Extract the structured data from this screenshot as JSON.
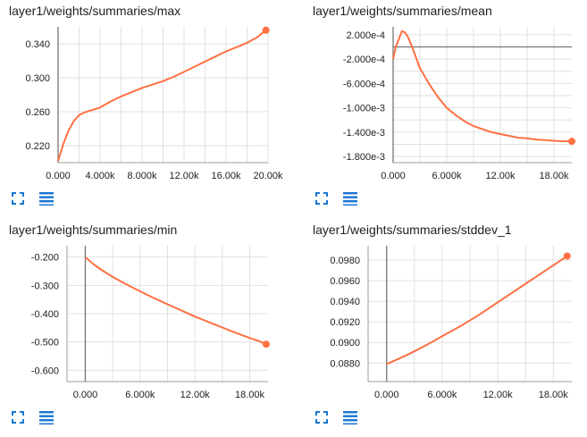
{
  "colors": {
    "series": "#ff7043",
    "grid": "#e0e0e0",
    "axis": "#9e9e9e",
    "zero_line": "#757575",
    "icon": "#1976d2"
  },
  "controls": {
    "expand_icon": "expand-icon",
    "list_icon": "list-icon"
  },
  "chart_data": [
    {
      "type": "line",
      "title": "layer1/weights/summaries/max",
      "xlabel": "",
      "ylabel": "",
      "xlim": [
        0,
        20000
      ],
      "ylim": [
        0.2,
        0.36
      ],
      "xticks": [
        0,
        4000,
        8000,
        12000,
        16000,
        20000
      ],
      "xtick_labels": [
        "0.000",
        "4.000k",
        "8.000k",
        "12.00k",
        "16.00k",
        "20.00k"
      ],
      "yticks": [
        0.22,
        0.26,
        0.3,
        0.34
      ],
      "ytick_labels": [
        "0.220",
        "0.260",
        "0.300",
        "0.340"
      ],
      "series": [
        {
          "x": [
            0,
            500,
            1000,
            1500,
            2000,
            2500,
            3000,
            4000,
            5000,
            6000,
            7000,
            8000,
            9000,
            10000,
            11000,
            12000,
            13000,
            14000,
            15000,
            16000,
            17000,
            18000,
            19000,
            19800
          ],
          "y": [
            0.202,
            0.222,
            0.238,
            0.249,
            0.256,
            0.259,
            0.261,
            0.265,
            0.272,
            0.278,
            0.283,
            0.288,
            0.292,
            0.296,
            0.301,
            0.307,
            0.313,
            0.319,
            0.325,
            0.331,
            0.336,
            0.341,
            0.348,
            0.356
          ]
        }
      ]
    },
    {
      "type": "line",
      "title": "layer1/weights/summaries/mean",
      "xlabel": "",
      "ylabel": "",
      "xlim": [
        0,
        20000
      ],
      "ylim": [
        -0.0019,
        0.00033
      ],
      "xticks": [
        0,
        6000,
        12000,
        18000
      ],
      "xtick_labels": [
        "0.000",
        "6.000k",
        "12.00k",
        "18.00k"
      ],
      "yticks": [
        0.0002,
        0,
        -0.0002,
        -0.0004,
        -0.0006,
        -0.0008,
        -0.001,
        -0.0012,
        -0.0014,
        -0.0016,
        -0.0018
      ],
      "ytick_labels": [
        "2.000e-4",
        "",
        "-2.000e-4",
        "",
        "-6.000e-4",
        "",
        "-1.000e-3",
        "",
        "-1.400e-3",
        "",
        "-1.800e-3"
      ],
      "series": [
        {
          "x": [
            0,
            300,
            700,
            1000,
            1300,
            1600,
            2000,
            2500,
            3000,
            4000,
            5000,
            6000,
            7000,
            8000,
            9000,
            10000,
            11000,
            12000,
            13000,
            14000,
            15000,
            16000,
            17000,
            18000,
            19000,
            20000
          ],
          "y": [
            -0.0002,
            0.0,
            0.00015,
            0.00026,
            0.00024,
            0.00018,
            5e-05,
            -0.00015,
            -0.00035,
            -0.0006,
            -0.00082,
            -0.001,
            -0.00112,
            -0.00122,
            -0.0013,
            -0.00135,
            -0.0014,
            -0.00143,
            -0.00146,
            -0.00149,
            -0.0015,
            -0.00152,
            -0.00153,
            -0.00154,
            -0.00155,
            -0.00155
          ]
        }
      ]
    },
    {
      "type": "line",
      "title": "layer1/weights/summaries/min",
      "xlabel": "",
      "ylabel": "",
      "xlim": [
        -2000,
        20000
      ],
      "ylim": [
        -0.64,
        -0.16
      ],
      "xticks": [
        0,
        6000,
        12000,
        18000
      ],
      "xtick_labels": [
        "0.000",
        "6.000k",
        "12.00k",
        "18.00k"
      ],
      "yticks": [
        -0.2,
        -0.3,
        -0.4,
        -0.5,
        -0.6
      ],
      "ytick_labels": [
        "-0.200",
        "-0.300",
        "-0.400",
        "-0.500",
        "-0.600"
      ],
      "series": [
        {
          "x": [
            0,
            1000,
            2000,
            3000,
            4000,
            5000,
            6000,
            7000,
            8000,
            9000,
            10000,
            11000,
            12000,
            13000,
            14000,
            15000,
            16000,
            17000,
            18000,
            19000,
            19800
          ],
          "y": [
            -0.2,
            -0.228,
            -0.25,
            -0.27,
            -0.288,
            -0.305,
            -0.321,
            -0.337,
            -0.352,
            -0.367,
            -0.381,
            -0.396,
            -0.41,
            -0.423,
            -0.436,
            -0.449,
            -0.462,
            -0.474,
            -0.486,
            -0.497,
            -0.508
          ]
        }
      ]
    },
    {
      "type": "line",
      "title": "layer1/weights/summaries/stddev_1",
      "xlabel": "",
      "ylabel": "",
      "xlim": [
        -2000,
        20000
      ],
      "ylim": [
        0.0862,
        0.0994
      ],
      "xticks": [
        0,
        6000,
        12000,
        18000
      ],
      "xtick_labels": [
        "0.000",
        "6.000k",
        "12.00k",
        "18.00k"
      ],
      "yticks": [
        0.088,
        0.09,
        0.092,
        0.094,
        0.096,
        0.098
      ],
      "ytick_labels": [
        "0.0880",
        "0.0900",
        "0.0920",
        "0.0940",
        "0.0960",
        "0.0980"
      ],
      "series": [
        {
          "x": [
            0,
            2000,
            4000,
            6000,
            8000,
            10000,
            12000,
            14000,
            16000,
            18000,
            19500
          ],
          "y": [
            0.0879,
            0.0887,
            0.0896,
            0.0906,
            0.0916,
            0.0927,
            0.0939,
            0.0951,
            0.0963,
            0.0975,
            0.0984
          ]
        }
      ]
    }
  ]
}
